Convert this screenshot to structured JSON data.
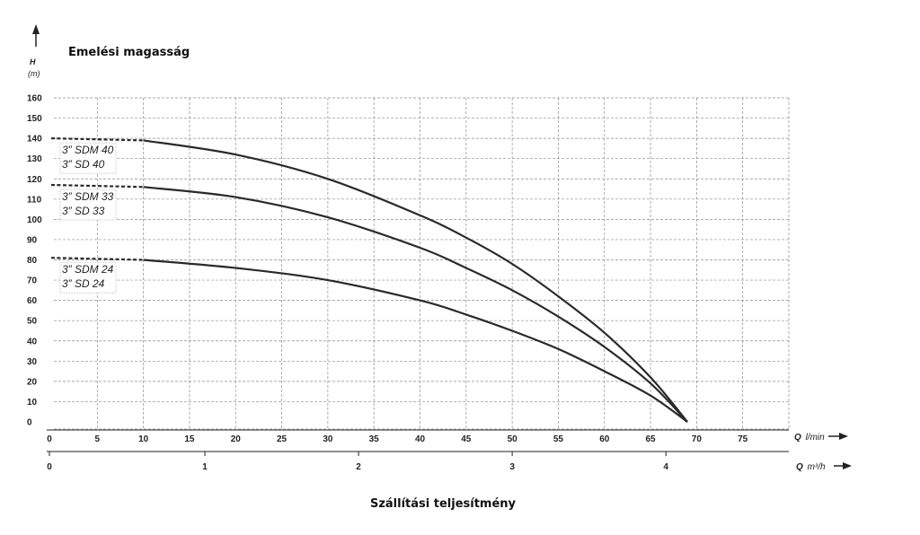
{
  "chart_data": {
    "type": "line",
    "title": "Emelési magasság",
    "xlabel": "Szállítási teljesítmény",
    "y_axis": {
      "symbol": "H",
      "unit": "(m)",
      "ylim": [
        0,
        160
      ],
      "ticks": [
        0,
        10,
        20,
        30,
        40,
        50,
        60,
        70,
        80,
        90,
        100,
        110,
        120,
        130,
        140,
        150,
        160
      ]
    },
    "x_axis_primary": {
      "symbol": "Q",
      "unit": "l/min",
      "xlim": [
        0,
        80
      ],
      "ticks": [
        0,
        5,
        10,
        15,
        20,
        25,
        30,
        35,
        40,
        45,
        50,
        55,
        60,
        65,
        70,
        75
      ]
    },
    "x_axis_secondary": {
      "symbol": "Q",
      "unit": "m³/h",
      "ticks": [
        0,
        1,
        2,
        3,
        4
      ]
    },
    "grid": true,
    "series": [
      {
        "name": "3\" SDM 40 / 3\" SD 40",
        "labels": [
          "3” SDM 40",
          "3” SD 40"
        ],
        "x": [
          0,
          10,
          20,
          30,
          40,
          45,
          50,
          55,
          60,
          65,
          69
        ],
        "y": [
          140,
          139,
          132,
          120,
          102,
          91,
          78,
          62,
          44,
          22,
          0
        ],
        "dashed_until_x": 10
      },
      {
        "name": "3\" SDM 33 / 3\" SD 33",
        "labels": [
          "3” SDM 33",
          "3” SD 33"
        ],
        "x": [
          0,
          10,
          20,
          30,
          40,
          45,
          50,
          55,
          60,
          65,
          69
        ],
        "y": [
          117,
          116,
          111,
          101,
          86,
          76,
          65,
          52,
          37,
          19,
          0
        ],
        "dashed_until_x": 10
      },
      {
        "name": "3\" SDM 24 / 3\" SD 24",
        "labels": [
          "3” SDM 24",
          "3” SD 24"
        ],
        "x": [
          0,
          10,
          20,
          30,
          40,
          45,
          50,
          55,
          60,
          65,
          69
        ],
        "y": [
          81,
          80,
          76,
          70,
          60,
          53,
          45,
          36,
          25,
          13,
          0
        ],
        "dashed_until_x": 10
      }
    ]
  }
}
